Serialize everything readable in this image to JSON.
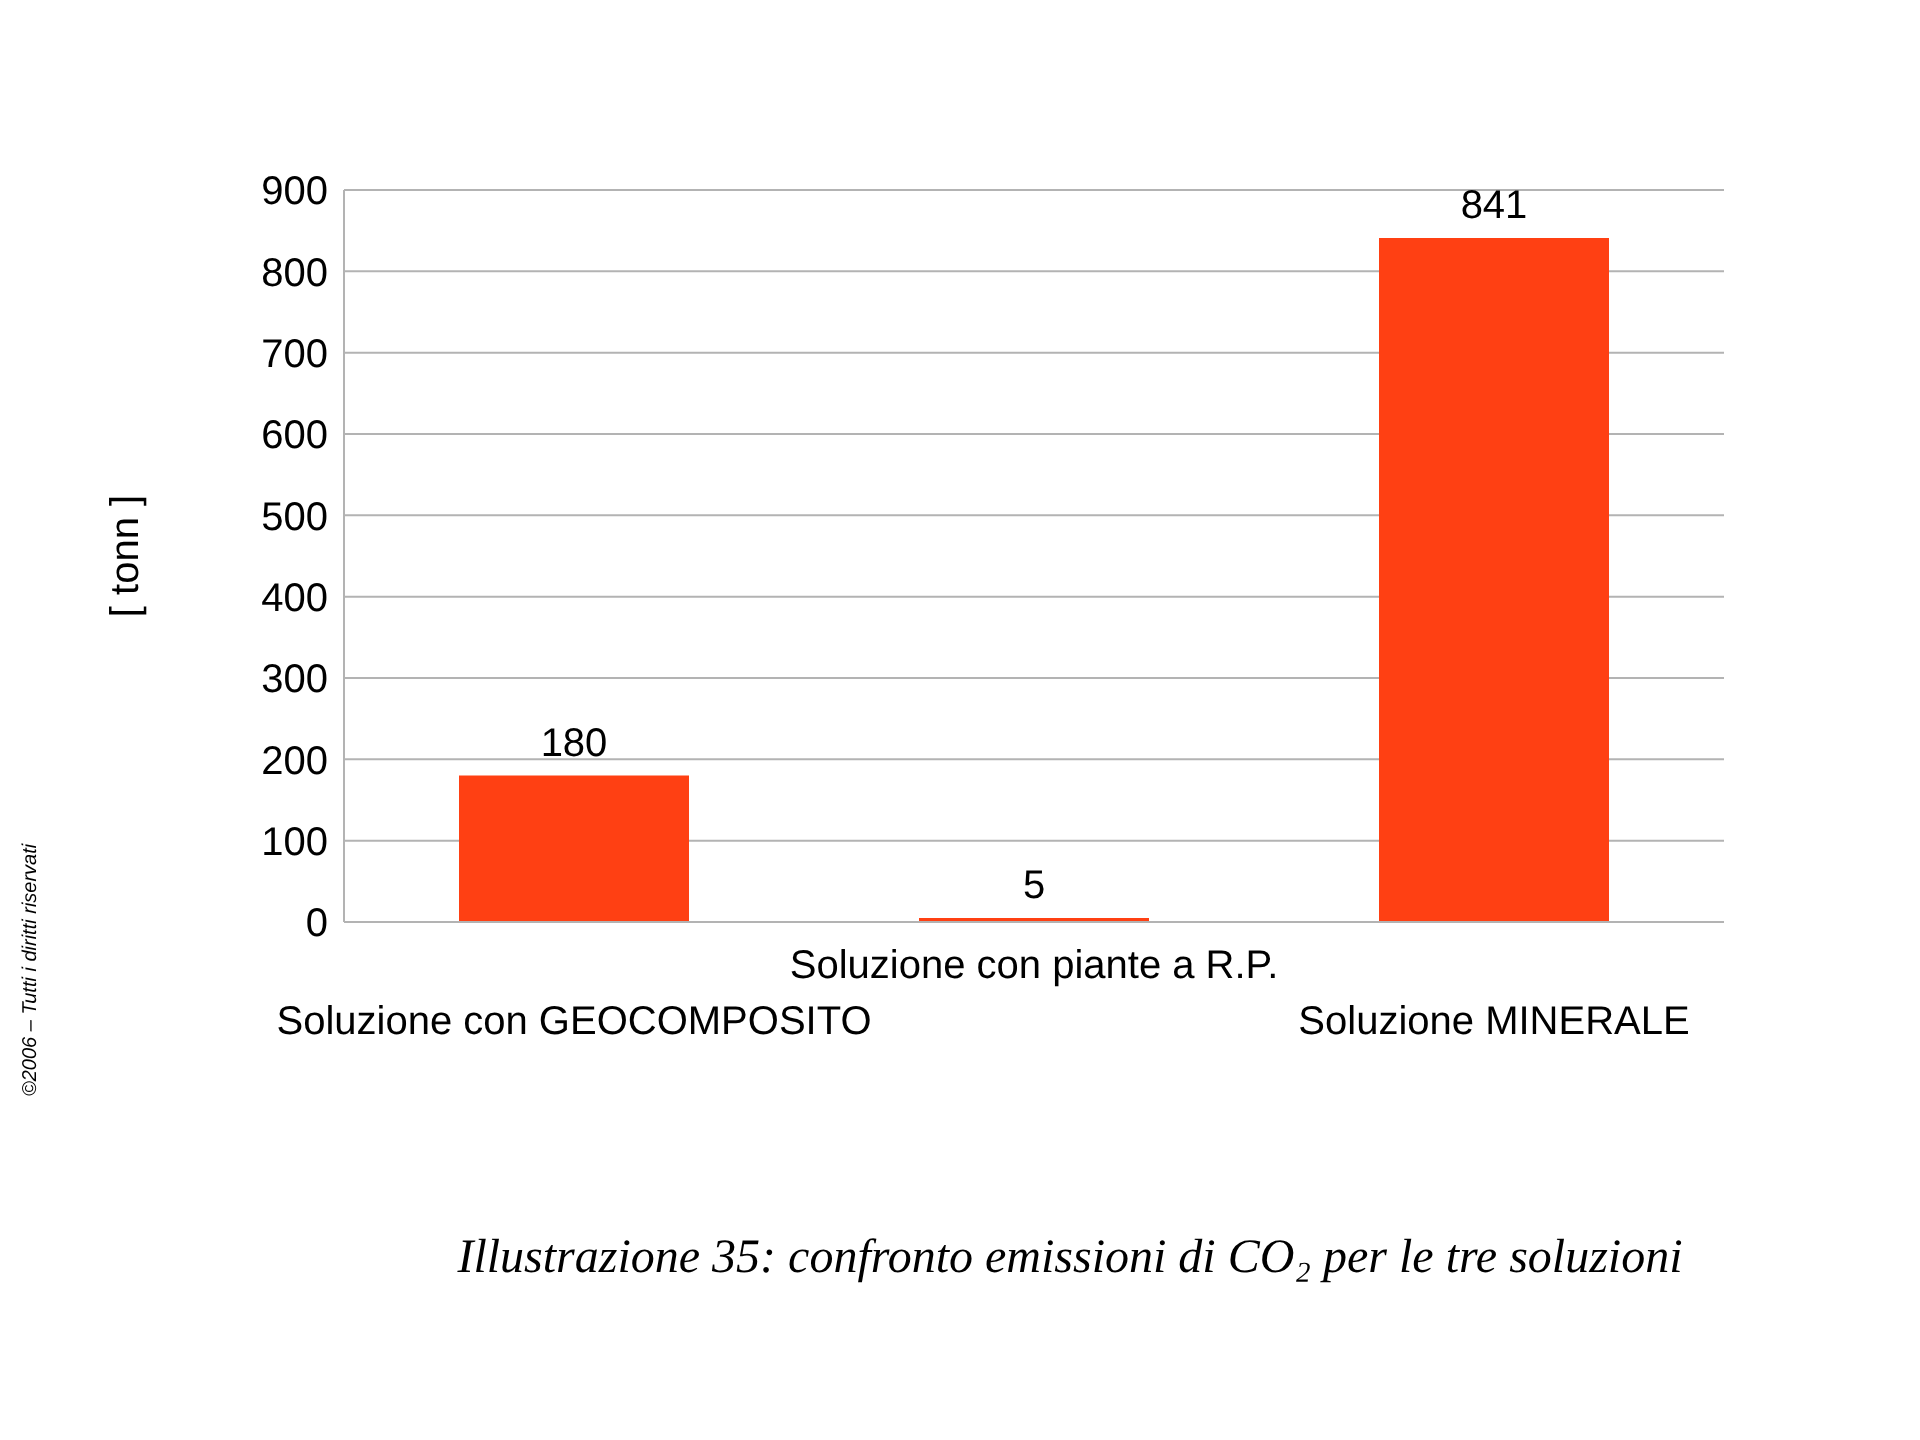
{
  "chart_data": {
    "type": "bar",
    "categories": [
      "Soluzione con GEOCOMPOSITO",
      "Soluzione con piante a R.P.",
      "Soluzione MINERALE"
    ],
    "values": [
      180,
      5,
      841
    ],
    "color": "#ff4013",
    "data_labels": true,
    "ylabel": "[ tonn ]",
    "ylim": [
      0,
      900
    ],
    "yticks": [
      0,
      100,
      200,
      300,
      400,
      500,
      600,
      700,
      800,
      900
    ],
    "grid": "y",
    "annotations": [
      "Illustrazione 35: confronto emissioni di CO₂ per le tre soluzioni",
      "©2006 – Tutti i diritti riservati"
    ]
  }
}
